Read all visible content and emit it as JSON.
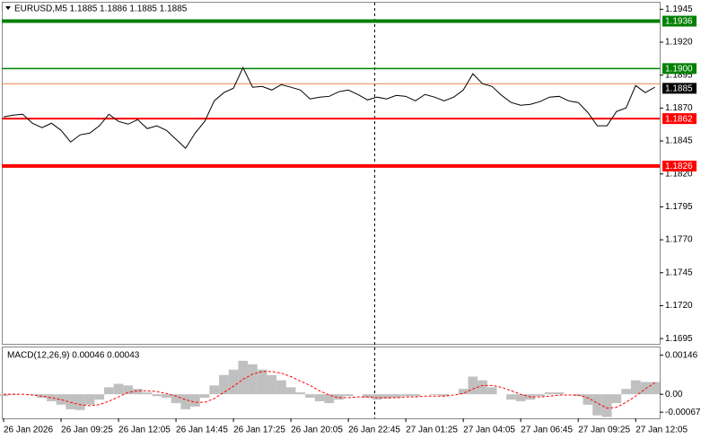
{
  "chart_data": [
    {
      "type": "line",
      "title": "EURUSD,M5  1.1885 1.1886 1.1885 1.1885",
      "categories": [
        "26 Jan 2026",
        null,
        null,
        null,
        null,
        null,
        "26 Jan 09:25",
        null,
        null,
        null,
        null,
        null,
        "26 Jan 12:05",
        null,
        null,
        null,
        null,
        null,
        "26 Jan 14:45",
        null,
        null,
        null,
        null,
        null,
        "26 Jan 17:25",
        null,
        null,
        null,
        null,
        null,
        "26 Jan 20:05",
        null,
        null,
        null,
        null,
        null,
        "26 Jan 22:45",
        null,
        null,
        null,
        null,
        null,
        "27 Jan 01:25",
        null,
        null,
        null,
        null,
        null,
        "27 Jan 04:05",
        null,
        null,
        null,
        null,
        null,
        "27 Jan 06:45",
        null,
        null,
        null,
        null,
        null,
        "27 Jan 09:25",
        null,
        null,
        null,
        null,
        null,
        "27 Jan 12:05",
        null,
        null
      ],
      "values": [
        1.18633,
        1.18646,
        1.18653,
        1.18585,
        1.18551,
        1.18585,
        1.18531,
        1.18442,
        1.18497,
        1.1851,
        1.18565,
        1.18653,
        1.18599,
        1.18578,
        1.18612,
        1.18544,
        1.18565,
        1.18531,
        1.18463,
        1.18394,
        1.1851,
        1.18599,
        1.18755,
        1.18817,
        1.18851,
        1.19007,
        1.18858,
        1.18864,
        1.18837,
        1.18878,
        1.18858,
        1.18837,
        1.18769,
        1.18783,
        1.18789,
        1.18824,
        1.18837,
        1.18803,
        1.18762,
        1.18783,
        1.18769,
        1.18796,
        1.18789,
        1.18755,
        1.18803,
        1.18783,
        1.18755,
        1.18783,
        1.18837,
        1.1896,
        1.18885,
        1.18864,
        1.18796,
        1.18742,
        1.18721,
        1.18728,
        1.18749,
        1.18783,
        1.18789,
        1.18755,
        1.18742,
        1.18667,
        1.18565,
        1.18565,
        1.18674,
        1.18701,
        1.18871,
        1.18817,
        1.18858
      ],
      "color": "#000000",
      "ylim": [
        1.1691,
        1.195
      ],
      "yticks": [
        1.1945,
        {
          "value": 1.192,
          "label": "1.1920"
        },
        1.1895,
        {
          "value": 1.187,
          "label": "1.1870"
        },
        1.1845,
        {
          "value": 1.182,
          "label": "1.1820"
        },
        1.1795,
        {
          "value": 1.177,
          "label": "1.1770"
        },
        1.1745,
        {
          "value": 1.172,
          "label": "1.1720"
        },
        1.1695
      ],
      "levels": [
        {
          "value": 1.1936,
          "color": "#008000",
          "width": 4
        },
        {
          "value": 1.19,
          "label": "1.1900",
          "color": "#008000",
          "width": 1.5
        },
        {
          "value": 1.18885,
          "color": "#e8844a",
          "width": 1,
          "tag": false
        },
        {
          "value": 1.1885,
          "color": "#000000",
          "width": 0,
          "tag": true
        },
        {
          "value": 1.1862,
          "color": "#ff0000",
          "width": 2
        },
        {
          "value": 1.1826,
          "color": "#ff0000",
          "width": 4
        }
      ]
    },
    {
      "type": "bar",
      "title": "MACD(12,26,9) 0.00046 0.00043",
      "ylim": [
        -0.0009,
        0.00175
      ],
      "yticks": [
        0.00146,
        {
          "value": 0,
          "label": "0.00"
        },
        -0.00067
      ],
      "series": [
        {
          "type": "bar",
          "color": "#c0c0c0",
          "values": [
            -7e-05,
            -3e-05,
            0,
            -3e-05,
            -0.00013,
            -0.00026,
            -0.00039,
            -0.00056,
            -0.00059,
            -0.00039,
            -0.0002,
            0.00026,
            0.00039,
            0.00033,
            0.0002,
            7e-05,
            -7e-05,
            -0.00013,
            -0.00033,
            -0.00056,
            -0.00046,
            -0.00013,
            0.00033,
            0.00072,
            0.00092,
            0.00125,
            0.00112,
            0.00092,
            0.00072,
            0.00052,
            0.00026,
            7e-05,
            -0.00013,
            -0.00026,
            -0.00033,
            -0.0002,
            -7e-05,
            0,
            -0.00013,
            -0.0002,
            -0.00016,
            -0.00013,
            -7e-05,
            -7e-05,
            0,
            -3e-05,
            -7e-05,
            0,
            0.0002,
            0.00066,
            0.00052,
            0.00026,
            0,
            -0.0002,
            -0.00026,
            -0.0002,
            -7e-05,
            7e-05,
            7e-05,
            0,
            -7e-05,
            -0.00039,
            -0.00079,
            -0.00085,
            -0.00033,
            0.0002,
            0.00052,
            0.00046,
            0.00046
          ]
        },
        {
          "type": "line",
          "color": "#ff0000",
          "dashed": true,
          "values": [
            0,
            0,
            0,
            -3e-05,
            -7e-05,
            -0.00013,
            -0.0002,
            -0.0003,
            -0.00039,
            -0.00043,
            -0.00039,
            -0.00026,
            -0.0001,
            7e-05,
            0.00013,
            0.00013,
            0.0001,
            3e-05,
            -7e-05,
            -0.0002,
            -0.0003,
            -0.0003,
            -0.00016,
            7e-05,
            0.0003,
            0.00056,
            0.00075,
            0.00085,
            0.00085,
            0.00079,
            0.00066,
            0.00049,
            0.00033,
            0.00013,
            -3e-05,
            -0.00013,
            -0.00013,
            -0.0001,
            -0.0001,
            -0.00013,
            -0.00013,
            -0.00013,
            -0.0001,
            -0.0001,
            -7e-05,
            -7e-05,
            -7e-05,
            -3e-05,
            3e-05,
            0.0002,
            0.00033,
            0.00033,
            0.00026,
            0.00013,
            0,
            -0.0001,
            -0.0001,
            -7e-05,
            -3e-05,
            -3e-05,
            -3e-05,
            -0.00013,
            -0.00033,
            -0.00052,
            -0.00049,
            -0.0003,
            -7e-05,
            0.0002,
            0.00043
          ]
        }
      ]
    }
  ]
}
